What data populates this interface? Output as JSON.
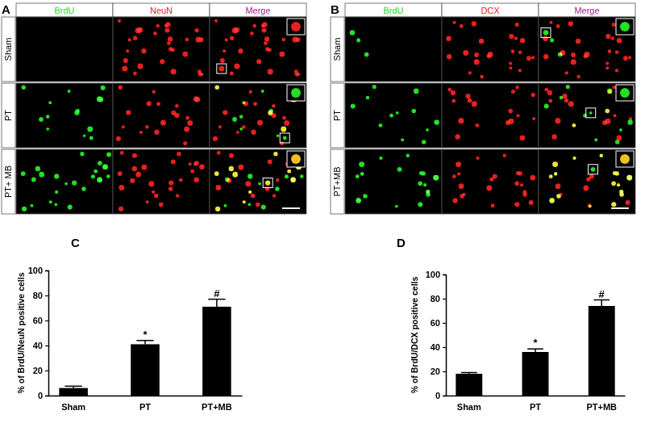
{
  "image_panels": [
    {
      "label": "A",
      "columns": [
        "BrdU",
        "NeuN",
        "Merge"
      ],
      "rows": [
        "Sham",
        "PT",
        "PT+ MB"
      ]
    },
    {
      "label": "B",
      "columns": [
        "BrdU",
        "DCX",
        "Merge"
      ],
      "rows": [
        "Sham",
        "PT",
        "PT+MB"
      ]
    }
  ],
  "chart_data": [
    {
      "type": "bar",
      "title": "C",
      "y_label": "% of BrdU/NeuN positive cells",
      "categories": [
        "Sham",
        "PT",
        "PT+MB"
      ],
      "values": [
        6,
        41,
        71
      ],
      "errors": [
        1.5,
        3,
        6
      ],
      "color": "#000000",
      "ylim": [
        0,
        100
      ],
      "yticks": [
        0,
        20,
        40,
        60,
        80,
        100
      ],
      "annotations": [
        {
          "category": "PT",
          "text": "*"
        },
        {
          "category": "PT+MB",
          "text": "#"
        }
      ]
    },
    {
      "type": "bar",
      "title": "D",
      "y_label": "% of BrdU/DCX positive cells",
      "categories": [
        "Sham",
        "PT",
        "PT+MB"
      ],
      "values": [
        18,
        36,
        74
      ],
      "errors": [
        1,
        2.5,
        5
      ],
      "color": "#000000",
      "ylim": [
        0,
        100
      ],
      "yticks": [
        0,
        20,
        40,
        60,
        80,
        100
      ],
      "annotations": [
        {
          "category": "PT",
          "text": "*"
        },
        {
          "category": "PT+MB",
          "text": "#"
        }
      ]
    }
  ]
}
